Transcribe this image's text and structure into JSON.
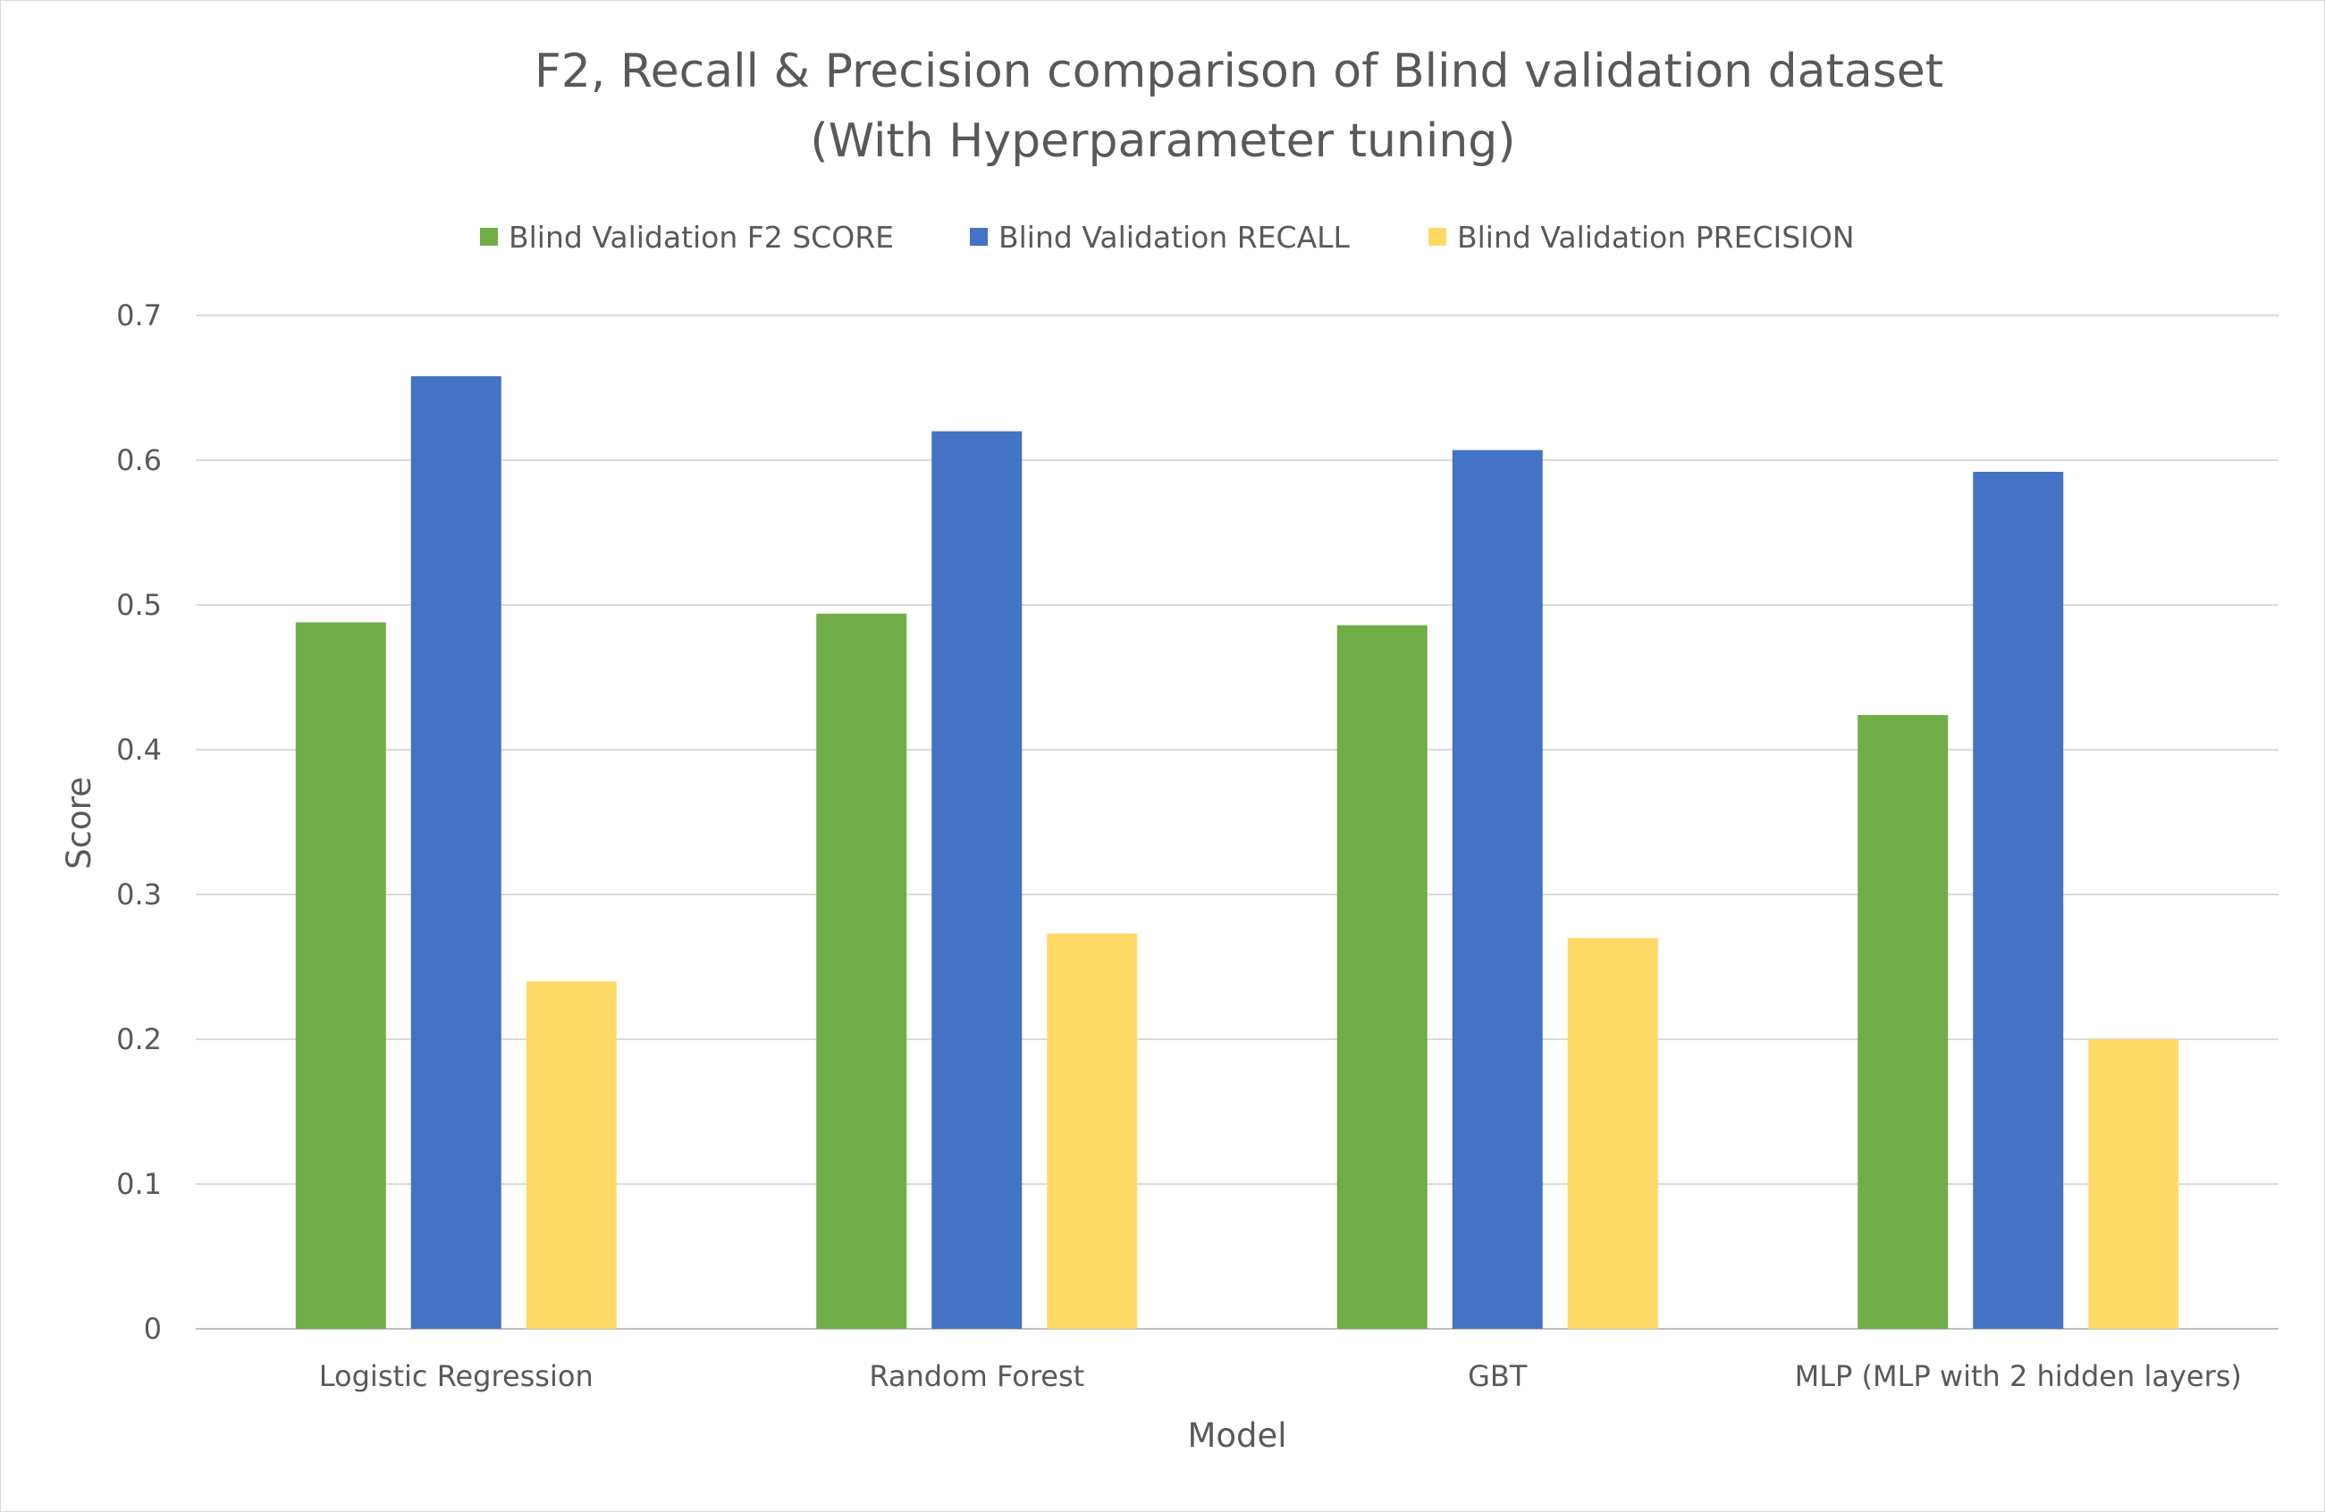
{
  "chart_data": {
    "type": "bar",
    "title": [
      "F2, Recall & Precision comparison of Blind validation dataset",
      "(With Hyperparameter tuning)"
    ],
    "xlabel": "Model",
    "ylabel": "Score",
    "ylim": [
      0,
      0.7
    ],
    "yticks": [
      "0",
      "0.1",
      "0.2",
      "0.3",
      "0.4",
      "0.5",
      "0.6",
      "0.7"
    ],
    "grid": true,
    "legend_position": "top",
    "categories": [
      "Logistic Regression",
      "Random Forest",
      "GBT",
      "MLP (MLP with 2 hidden layers)"
    ],
    "series": [
      {
        "name": "Blind Validation F2 SCORE",
        "color": "#70ad47",
        "values": [
          0.488,
          0.494,
          0.486,
          0.424
        ]
      },
      {
        "name": "Blind Validation RECALL",
        "color": "#4472c4",
        "values": [
          0.658,
          0.62,
          0.607,
          0.592
        ]
      },
      {
        "name": "Blind Validation PRECISION",
        "color": "#ffd966",
        "values": [
          0.24,
          0.273,
          0.27,
          0.2
        ]
      }
    ]
  }
}
